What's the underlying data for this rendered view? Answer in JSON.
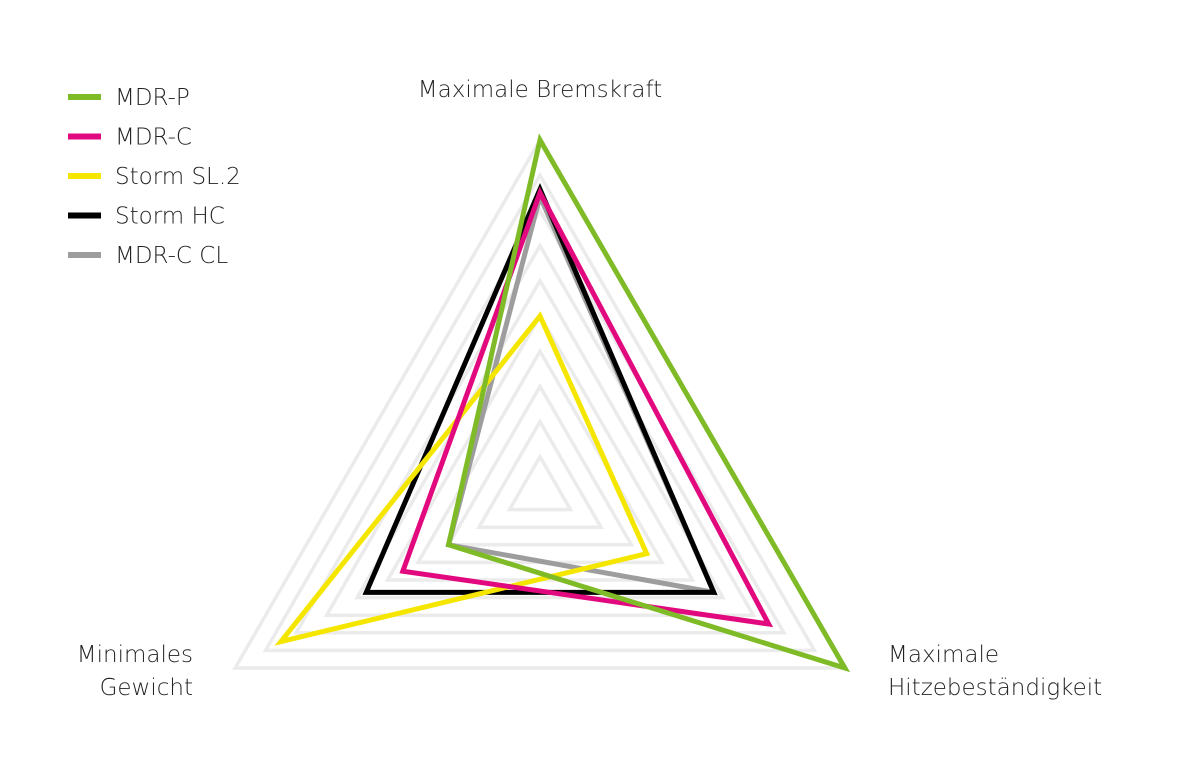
{
  "chart_data": {
    "type": "radar",
    "categories": [
      [
        "Maximale Bremskraft"
      ],
      [
        "Maximale",
        "Hitzebeständigkeit"
      ],
      [
        "Minimales",
        "Gewicht"
      ]
    ],
    "rlim": [
      0,
      10
    ],
    "rticks": [
      1,
      2,
      3,
      4,
      5,
      6,
      7,
      8,
      9,
      10
    ],
    "grid": true,
    "legend": "upper left",
    "series": [
      {
        "name": "MDR-P",
        "color": "#7fba27",
        "values": [
          10,
          10,
          3
        ]
      },
      {
        "name": "MDR-C",
        "color": "#e2097f",
        "values": [
          8.5,
          7.5,
          4.5
        ]
      },
      {
        "name": "Storm SL.2",
        "color": "#f5e600",
        "values": [
          5,
          3.5,
          8.5
        ]
      },
      {
        "name": "Storm HC",
        "color": "#000000",
        "values": [
          8.6,
          5.7,
          5.7
        ]
      },
      {
        "name": "MDR-C CL",
        "color": "#9d9d9d",
        "values": [
          8.4,
          5.7,
          3
        ]
      }
    ]
  }
}
